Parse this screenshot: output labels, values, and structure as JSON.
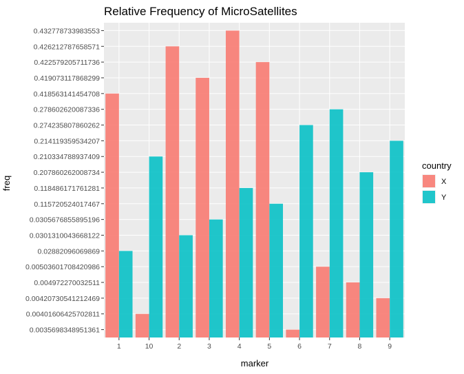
{
  "chart_data": {
    "type": "bar",
    "title": "Relative Frequency of MicroSatellites",
    "xlabel": "marker",
    "ylabel": "freq",
    "x_axis_type": "discrete",
    "y_axis_type": "discrete",
    "y_levels": [
      "0.0035698348951361",
      "0.00401606425702811",
      "0.00420730541212469",
      "0.004972270032511",
      "0.00503601708420986",
      "0.02882096069869",
      "0.0301310043668122",
      "0.0305676855895196",
      "0.115720524017467",
      "0.118486171761281",
      "0.207860262008734",
      "0.210334788937409",
      "0.214119359534207",
      "0.274235807860262",
      "0.278602620087336",
      "0.418563141454708",
      "0.419073117868299",
      "0.422579205711736",
      "0.426212787658571",
      "0.432778733983553"
    ],
    "categories": [
      "1",
      "10",
      "2",
      "3",
      "4",
      "5",
      "6",
      "7",
      "8",
      "9"
    ],
    "series": [
      {
        "name": "X",
        "color": "#F8766D",
        "values": [
          "0.418563141454708",
          "0.00401606425702811",
          "0.426212787658571",
          "0.419073117868299",
          "0.432778733983553",
          "0.422579205711736",
          "0.0035698348951361",
          "0.00503601708420986",
          "0.004972270032511",
          "0.00420730541212469"
        ]
      },
      {
        "name": "Y",
        "color": "#00BFC4",
        "values": [
          "0.02882096069869",
          "0.210334788937409",
          "0.0301310043668122",
          "0.0305676855895196",
          "0.118486171761281",
          "0.115720524017467",
          "0.274235807860262",
          "0.278602620087336",
          "0.207860262008734",
          "0.214119359534207"
        ]
      }
    ],
    "legend": {
      "title": "country",
      "position": "right"
    },
    "grid": true,
    "panel_background": "#EBEBEB"
  }
}
